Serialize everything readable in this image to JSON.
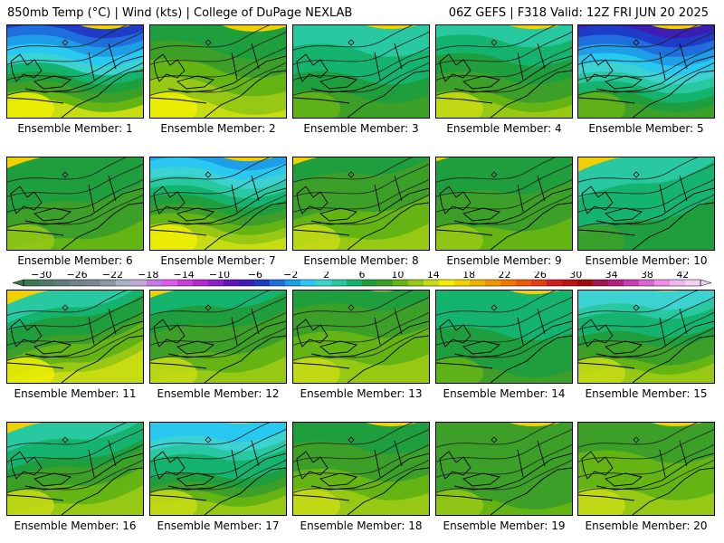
{
  "header": {
    "left": "850mb Temp (°C) | Wind (kts) | College of DuPage NEXLAB",
    "right": "06Z GEFS | F318 Valid: 12Z FRI JUN 20 2025"
  },
  "panel_label_prefix": "Ensemble Member: ",
  "members": [
    {
      "label": "Ensemble Member: 1",
      "north_temp": -2,
      "south_temp": 20,
      "skew": 0.0
    },
    {
      "label": "Ensemble Member: 2",
      "north_temp": 12,
      "south_temp": 20,
      "skew": -0.15
    },
    {
      "label": "Ensemble Member: 3",
      "north_temp": 8,
      "south_temp": 15,
      "skew": 0.0
    },
    {
      "label": "Ensemble Member: 4",
      "north_temp": 8,
      "south_temp": 18,
      "skew": 0.0
    },
    {
      "label": "Ensemble Member: 5",
      "north_temp": -4,
      "south_temp": 14,
      "skew": 0.0
    },
    {
      "label": "Ensemble Member: 6",
      "north_temp": 12,
      "south_temp": 16,
      "skew": 0.5
    },
    {
      "label": "Ensemble Member: 7",
      "north_temp": 2,
      "south_temp": 20,
      "skew": 0.0
    },
    {
      "label": "Ensemble Member: 8",
      "north_temp": 13,
      "south_temp": 18,
      "skew": 0.4
    },
    {
      "label": "Ensemble Member: 9",
      "north_temp": 12,
      "south_temp": 17,
      "skew": 0.3
    },
    {
      "label": "Ensemble Member: 10",
      "north_temp": 9,
      "south_temp": 13,
      "skew": 0.6
    },
    {
      "label": "Ensemble Member: 11",
      "north_temp": 8,
      "south_temp": 20,
      "skew": 0.6
    },
    {
      "label": "Ensemble Member: 12",
      "north_temp": 11,
      "south_temp": 18,
      "skew": 0.4
    },
    {
      "label": "Ensemble Member: 13",
      "north_temp": 13,
      "south_temp": 19,
      "skew": 0.2
    },
    {
      "label": "Ensemble Member: 14",
      "north_temp": 10,
      "south_temp": 14,
      "skew": 0.0
    },
    {
      "label": "Ensemble Member: 15",
      "north_temp": 6,
      "south_temp": 18,
      "skew": 0.2
    },
    {
      "label": "Ensemble Member: 16",
      "north_temp": 8,
      "south_temp": 19,
      "skew": 0.5
    },
    {
      "label": "Ensemble Member: 17",
      "north_temp": 4,
      "south_temp": 18,
      "skew": 0.2
    },
    {
      "label": "Ensemble Member: 18",
      "north_temp": 12,
      "south_temp": 19,
      "skew": 0.0
    },
    {
      "label": "Ensemble Member: 19",
      "north_temp": 14,
      "south_temp": 16,
      "skew": 0.0
    },
    {
      "label": "Ensemble Member: 20",
      "north_temp": 14,
      "south_temp": 19,
      "skew": 0.0
    }
  ],
  "colorbar": {
    "ticks": [
      -30,
      -26,
      -22,
      -18,
      -14,
      -10,
      -6,
      -2,
      2,
      6,
      10,
      14,
      18,
      22,
      26,
      30,
      34,
      38,
      42
    ],
    "min": -32,
    "max": 44,
    "step": 2,
    "colors": [
      "#3c7850",
      "#4e7a6c",
      "#5e7a80",
      "#72828c",
      "#7a8694",
      "#8c96a4",
      "#a8b4c4",
      "#c4a8dc",
      "#c878e6",
      "#dc5aec",
      "#cc3cd8",
      "#b428d0",
      "#8c1ec8",
      "#6414be",
      "#3c1eb4",
      "#1e3cc8",
      "#1e6edc",
      "#1e9ee6",
      "#28c8f0",
      "#3cd2d2",
      "#28c8a0",
      "#14b46e",
      "#1e9e3c",
      "#3ca028",
      "#64b414",
      "#96c814",
      "#c8dc14",
      "#f0f000",
      "#f0d200",
      "#f0b400",
      "#f09600",
      "#f07800",
      "#eb5a0a",
      "#e63c14",
      "#d21e1e",
      "#be1414",
      "#a00a0a",
      "#a01450",
      "#b41e82",
      "#c83cb4",
      "#dc64d2",
      "#f08ce6",
      "#f0b4f0",
      "#f0d2f0"
    ]
  }
}
